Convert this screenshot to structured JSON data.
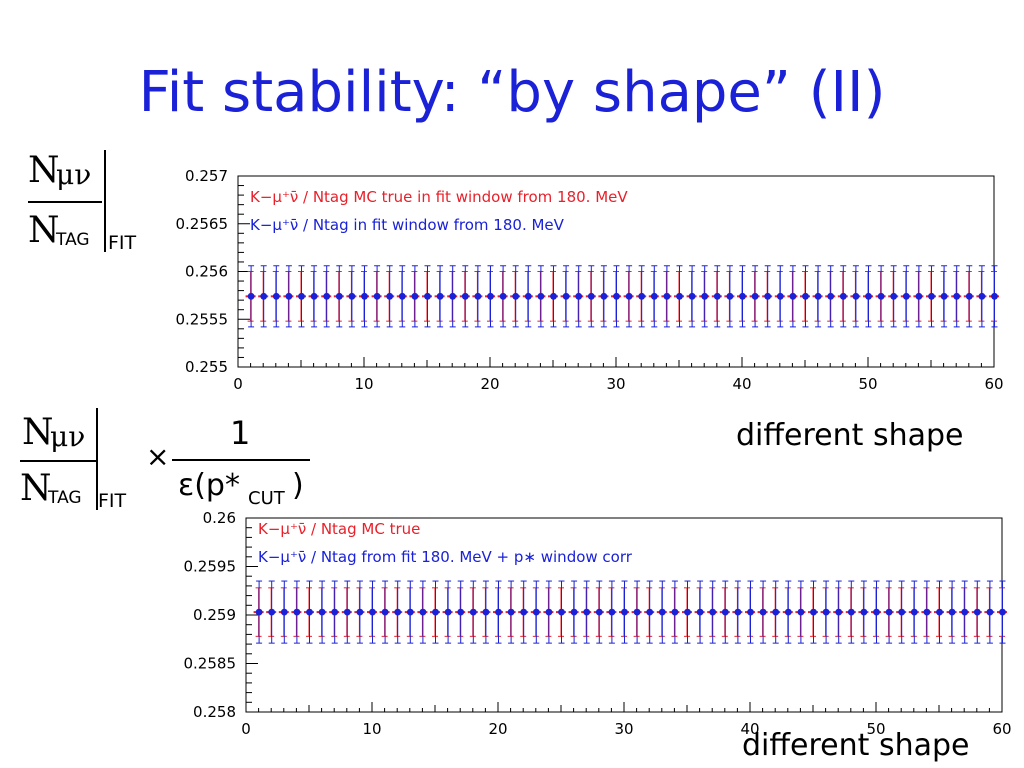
{
  "slide": {
    "title": "Fit stability: “by shape” (II)",
    "formula1": {
      "num_N": "N",
      "num_sub": "μν",
      "den_N": "N",
      "den_sub": "TAG",
      "eval_sub": "FIT"
    },
    "formula2": {
      "num_N": "N",
      "num_sub": "μν",
      "den_N": "N",
      "den_sub": "TAG",
      "eval_sub": "FIT",
      "times": "×",
      "frac_num": "1",
      "frac_den_main": "ε(p*",
      "frac_den_sub": "CUT",
      "frac_den_close": ")"
    },
    "caption1": "different shape",
    "caption2": "different shape"
  },
  "chart_data": [
    {
      "type": "scatter",
      "xlim": [
        0,
        60
      ],
      "ylim": [
        0.255,
        0.257
      ],
      "x_ticks": [
        "0",
        "10",
        "20",
        "30",
        "40",
        "50",
        "60"
      ],
      "y_ticks": [
        "0.255",
        "0.2555",
        "0.256",
        "0.2565",
        "0.257"
      ],
      "legend": [
        {
          "text": "K−μ⁺ν̄ / Ntag MC true in fit window from 180. MeV",
          "color": "#e8212b"
        },
        {
          "text": "K−μ⁺ν̄ / Ntag in fit window from 180. MeV",
          "color": "#1a21d6"
        }
      ],
      "series": [
        {
          "color": "#e8212b",
          "x_start": 1,
          "x_step": 1,
          "count": 60,
          "y": 0.25574,
          "err": 0.00026,
          "marker": "line"
        },
        {
          "color": "#1a21d6",
          "x_start": 1,
          "x_step": 1,
          "count": 60,
          "y": 0.25574,
          "err": 0.00032,
          "marker": "dot"
        }
      ]
    },
    {
      "type": "scatter",
      "xlim": [
        0,
        60
      ],
      "ylim": [
        0.258,
        0.26
      ],
      "x_ticks": [
        "0",
        "10",
        "20",
        "30",
        "40",
        "50",
        "60"
      ],
      "y_ticks": [
        "0.258",
        "0.2585",
        "0.259",
        "0.2595",
        "0.26"
      ],
      "legend": [
        {
          "text": "K−μ⁺ν̄ / Ntag MC true",
          "color": "#e8212b"
        },
        {
          "text": "K−μ⁺ν̄ / Ntag from fit 180. MeV + p∗ window corr",
          "color": "#1a21d6"
        }
      ],
      "series": [
        {
          "color": "#e8212b",
          "x_start": 1,
          "x_step": 1,
          "count": 60,
          "y": 0.25903,
          "err": 0.00025,
          "marker": "line"
        },
        {
          "color": "#1a21d6",
          "x_start": 1,
          "x_step": 1,
          "count": 60,
          "y": 0.25903,
          "err": 0.00032,
          "marker": "dot"
        }
      ]
    }
  ]
}
